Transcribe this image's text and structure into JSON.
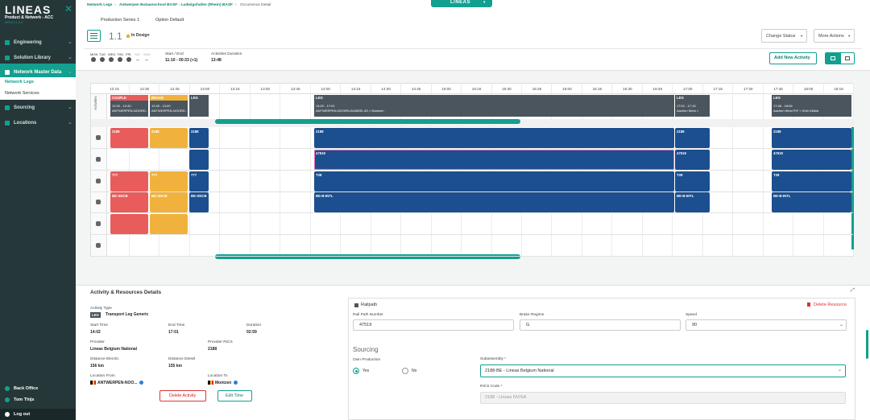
{
  "sidebar": {
    "brand": "LINEAS",
    "product": "Product & Network - ACC",
    "version": "APACC1.0.0",
    "menu": [
      "Engineering",
      "Solution Library",
      "Network Master Data",
      "Sourcing",
      "Locations"
    ],
    "submenu": [
      "Network Legs",
      "Network Services"
    ],
    "footer": [
      "Back Office",
      "Tom Thijs",
      "Log out"
    ]
  },
  "header": {
    "breadcrumb": [
      "Network Legs",
      "Antwerpen Butaanschool BASF - Ludwigshafen (Rhein) BASF",
      "Occurrence Detail"
    ],
    "app_switch": "LINEAS",
    "tabs": [
      "Production Series 1",
      "Option Default"
    ],
    "version": "1.1",
    "status": "In Design",
    "buttons": [
      "Change Status",
      "More Actions"
    ]
  },
  "summary": {
    "days": [
      "MON",
      "TUE",
      "WED",
      "THU",
      "FRI",
      "SAT",
      "SUN"
    ],
    "start_end_label": "Start / End",
    "start_end": "11:10 - 00:33 (+1)",
    "duration_label": "Activities Duration",
    "duration": "13:48",
    "add_button": "Add New Activity"
  },
  "timeline": {
    "times": [
      "12:15",
      "12:30",
      "12:45",
      "13:00",
      "13:15",
      "13:30",
      "13:45",
      "14:00",
      "14:15",
      "14:30",
      "14:45",
      "15:00",
      "15:15",
      "15:30",
      "15:45",
      "16:00",
      "16:15",
      "16:30",
      "16:45",
      "17:00",
      "17:15",
      "17:30",
      "17:45",
      "18:00",
      "18:15"
    ],
    "row_label": "Activities",
    "activities": [
      {
        "type": "COUPLE",
        "time": "12:20 - 12:40",
        "route": "ANTWERPEN-NOORD...",
        "color": "#e85c5c"
      },
      {
        "type": "BRAKE",
        "time": "12:40 - 13:00",
        "route": "ANTWERPEN-NOORD...",
        "color": "#f0b23c"
      },
      {
        "type": "LEG"
      },
      {
        "type": "LEG",
        "time": "14:02 - 17:01",
        "route": "ANTWERPEN-NOORD-BUNDEL 83 > Montzen"
      },
      {
        "type": "LEG",
        "time": "17:01 - 17:16",
        "route": "Aachen West >"
      },
      {
        "type": "LEG",
        "time": "17:46 - 18:06",
        "route": "Aachen West PrF > Köln Kläbla"
      }
    ],
    "resource_rows": [
      [
        {
          "label": "2188",
          "color": "#e85c5c"
        },
        {
          "label": "2188",
          "color": "#f0b23c"
        },
        {
          "label": "2188",
          "color": "#1b4f8f"
        },
        {
          "label": "2188",
          "color": "#1b4f8f"
        },
        {
          "label": "2188",
          "color": "#1b4f8f"
        },
        {
          "label": "2188",
          "color": "#1b4f8f"
        }
      ],
      [
        null,
        null,
        {
          "color": "#1b4f8f"
        },
        {
          "label": "47519",
          "color": "#1b4f8f",
          "highlight": true
        },
        {
          "label": "47519",
          "color": "#1b4f8f"
        },
        {
          "label": "47519",
          "color": "#1b4f8f"
        }
      ],
      [
        {
          "label": "777",
          "color": "#e85c5c"
        },
        {
          "label": "777",
          "color": "#f0b23c"
        },
        {
          "label": "777",
          "color": "#1b4f8f"
        },
        {
          "label": "T28",
          "color": "#1b4f8f"
        },
        {
          "label": "T28",
          "color": "#1b4f8f"
        },
        {
          "label": "T28",
          "color": "#1b4f8f"
        }
      ],
      [
        {
          "label": "BE-SNCB",
          "color": "#e85c5c"
        },
        {
          "label": "BE-SNCB",
          "color": "#f0b23c"
        },
        {
          "label": "BE-SNCB",
          "color": "#1b4f8f"
        },
        {
          "label": "BE-B-INTL",
          "color": "#1b4f8f"
        },
        {
          "label": "BE-B-INTL",
          "color": "#1b4f8f"
        },
        {
          "label": "BE-B-INTL",
          "color": "#1b4f8f"
        }
      ],
      [
        {
          "color": "#e85c5c"
        },
        {
          "color": "#f0b23c"
        },
        null,
        null,
        null,
        null
      ],
      [
        null,
        null,
        null,
        null,
        null,
        null
      ]
    ]
  },
  "details": {
    "title": "Activity & Resources Details",
    "activity_type_label": "Activity Type",
    "activity_type_badge": "LEG",
    "activity_type": "Transport Leg Generic",
    "fields": [
      [
        "Start Time",
        "14:02"
      ],
      [
        "End Time",
        "17:01"
      ],
      [
        "Duration",
        "02:59"
      ],
      [
        "Provider",
        "Lineas Belgium National"
      ],
      [
        "Provider RICS",
        "2188"
      ],
      [
        "Distance Electric",
        "156 km"
      ],
      [
        "Distance Diesel",
        "155 km"
      ],
      [
        "Location From",
        "ANTWERPEN-NOO..."
      ],
      [
        "Location To",
        "Montzen"
      ]
    ],
    "buttons": [
      "Delete Activity",
      "Edit Time"
    ],
    "resource": {
      "title": "Railpath",
      "delete": "Delete Resource",
      "rail_path_label": "Rail Path Number",
      "rail_path": "47519",
      "brake_label": "Brake Regime",
      "brake": "G",
      "speed_label": "Speed",
      "speed": "90",
      "sourcing_title": "Sourcing",
      "own_production_label": "Own Production",
      "yes": "Yes",
      "no": "No",
      "subassembly_label": "Subassembly *",
      "subassembly": "2188-BE - Lineas Belgium National",
      "rics_label": "RICS Code *",
      "rics": "2188 - Lineas NV/SA"
    }
  }
}
